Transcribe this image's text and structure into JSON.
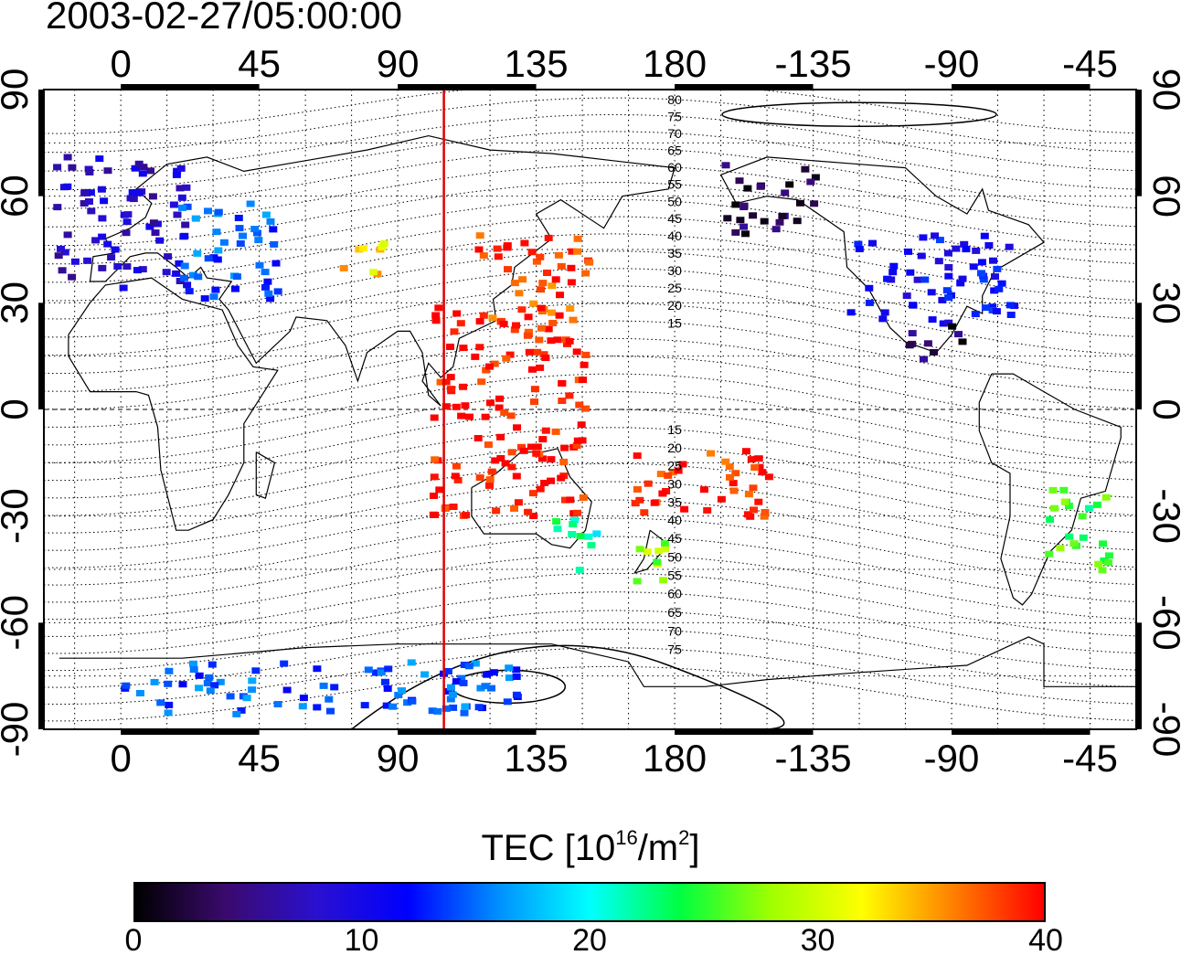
{
  "title": "2003-02-27/05:00:00",
  "map": {
    "projection": "equirectangular",
    "lon_range": [
      -25,
      330
    ],
    "lat_range": [
      -90,
      90
    ],
    "top_lon_labels": [
      "0",
      "45",
      "90",
      "135",
      "180",
      "-135",
      "-90",
      "-45"
    ],
    "bottom_lon_labels": [
      "0",
      "45",
      "90",
      "135",
      "180",
      "-135",
      "-90",
      "-45"
    ],
    "left_lat_labels": [
      "90",
      "60",
      "30",
      "0",
      "-30",
      "-60",
      "-90"
    ],
    "right_lat_labels": [
      "90",
      "60",
      "30",
      "0",
      "-30",
      "-60",
      "-90"
    ],
    "grid": "dotted every 15 degrees",
    "terminator_longitude": 105,
    "terminator_color": "#e00000",
    "contour_labels": [
      "80",
      "75",
      "70",
      "65",
      "60",
      "55",
      "50",
      "45",
      "40",
      "35",
      "30",
      "25",
      "20",
      "15",
      "15",
      "20",
      "25",
      "30",
      "35",
      "40",
      "45",
      "50",
      "55",
      "60",
      "65",
      "70",
      "75"
    ]
  },
  "colorbar": {
    "title_prefix": "TEC  [10",
    "title_exp": "16",
    "title_mid": "/m",
    "title_exp2": "2",
    "title_suffix": "]",
    "min": 0,
    "max": 40,
    "tick_labels": [
      "0",
      "10",
      "20",
      "30",
      "40"
    ],
    "colors": [
      "#000000",
      "#3a0a6e",
      "#2a10d0",
      "#0000ff",
      "#0090ff",
      "#00ffff",
      "#00ff40",
      "#a0ff00",
      "#ffff00",
      "#ff8000",
      "#ff0000"
    ]
  },
  "chart_data": {
    "type": "heatmap",
    "title": "2003-02-27/05:00:00",
    "colorbar_label": "TEC [10^16/m^2]",
    "value_range": [
      0,
      40
    ],
    "regions": [
      {
        "lon_min": -22,
        "lon_max": 22,
        "lat_min": 35,
        "lat_max": 72,
        "tec": 8
      },
      {
        "lon_min": 15,
        "lon_max": 50,
        "lat_min": 32,
        "lat_max": 60,
        "tec": 14
      },
      {
        "lon_min": 70,
        "lon_max": 85,
        "lat_min": 38,
        "lat_max": 48,
        "tec": 33
      },
      {
        "lon_min": 115,
        "lon_max": 152,
        "lat_min": 25,
        "lat_max": 50,
        "tec": 38
      },
      {
        "lon_min": 100,
        "lon_max": 150,
        "lat_min": 0,
        "lat_max": 30,
        "tec": 40
      },
      {
        "lon_min": 100,
        "lon_max": 150,
        "lat_min": -30,
        "lat_max": 0,
        "tec": 40
      },
      {
        "lon_min": 165,
        "lon_max": 210,
        "lat_min": -30,
        "lat_max": -10,
        "tec": 39
      },
      {
        "lon_min": 140,
        "lon_max": 155,
        "lat_min": -45,
        "lat_max": -30,
        "tec": 22
      },
      {
        "lon_min": 165,
        "lon_max": 180,
        "lat_min": -48,
        "lat_max": -35,
        "tec": 28
      },
      {
        "lon_min": 235,
        "lon_max": 290,
        "lat_min": 25,
        "lat_max": 50,
        "tec": 11
      },
      {
        "lon_min": 255,
        "lon_max": 275,
        "lat_min": 15,
        "lat_max": 25,
        "tec": 3
      },
      {
        "lon_min": 300,
        "lon_max": 320,
        "lat_min": -45,
        "lat_max": -20,
        "tec": 25
      },
      {
        "lon_min": 195,
        "lon_max": 225,
        "lat_min": 50,
        "lat_max": 70,
        "tec": 3
      },
      {
        "lon_min": 0,
        "lon_max": 130,
        "lat_min": -85,
        "lat_max": -70,
        "tec": 14
      }
    ]
  }
}
